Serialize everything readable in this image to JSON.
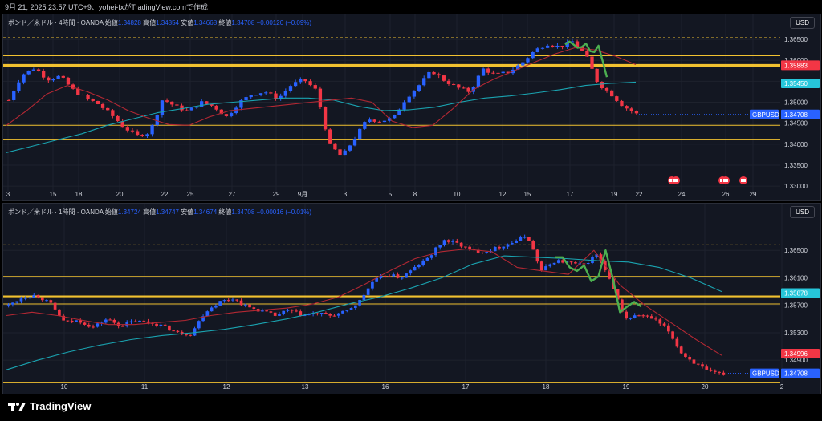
{
  "header": {
    "caption": "9月 21, 2025 23:57 UTC+9、yohei-fxがTradingView.comで作成"
  },
  "footer": {
    "brand": "TradingView"
  },
  "chart_data": [
    {
      "type": "candlestick",
      "symbol_label": "ポンド／米ドル · 4時間 · OANDA",
      "ohlc_labels": {
        "open": "始値",
        "high": "高値",
        "low": "安値",
        "close": "終値"
      },
      "ohlc": {
        "open": "1.34828",
        "high": "1.34854",
        "low": "1.34668",
        "close": "1.34708",
        "change": "−0.00120 (−0.09%)"
      },
      "currency": "USD",
      "ylim": [
        1.3285,
        1.3675
      ],
      "y_ticks": [
        "1.36500",
        "1.36000",
        "1.35500",
        "1.35000",
        "1.34500",
        "1.34000",
        "1.33500",
        "1.33000"
      ],
      "x_ticks": [
        "3",
        "15",
        "18",
        "20",
        "22",
        "25",
        "27",
        "29",
        "9月",
        "3",
        "5",
        "8",
        "10",
        "12",
        "15",
        "17",
        "19",
        "22",
        "24",
        "26",
        "29"
      ],
      "last_price": {
        "symbol": "GBPUSD",
        "value": "1.34708"
      },
      "price_labels": [
        {
          "value": "1.35883",
          "color": "#f23645"
        },
        {
          "value": "1.35450",
          "color": "#26c6da"
        }
      ],
      "levels": [
        {
          "value": 1.3654,
          "style": "dashed",
          "color": "#f2c230"
        },
        {
          "value": 1.3611,
          "style": "solid",
          "color": "#f2c230"
        },
        {
          "value": 1.3589,
          "style": "solid",
          "color": "#f2c230"
        },
        {
          "value": 1.3586,
          "style": "solid",
          "color": "#f2c230"
        },
        {
          "value": 1.3445,
          "style": "solid",
          "color": "#f2c230"
        },
        {
          "value": 1.3412,
          "style": "solid",
          "color": "#f2c230"
        }
      ],
      "price_path": [
        1.3505,
        1.3565,
        1.3582,
        1.3555,
        1.3562,
        1.353,
        1.351,
        1.3495,
        1.347,
        1.344,
        1.342,
        1.3428,
        1.3508,
        1.349,
        1.3478,
        1.35,
        1.349,
        1.3465,
        1.35,
        1.352,
        1.3525,
        1.3508,
        1.354,
        1.3555,
        1.3528,
        1.34,
        1.337,
        1.3415,
        1.346,
        1.3455,
        1.3462,
        1.351,
        1.354,
        1.3575,
        1.3552,
        1.3535,
        1.3525,
        1.358,
        1.3565,
        1.3572,
        1.3592,
        1.3622,
        1.364,
        1.3632,
        1.3645,
        1.3615,
        1.3545,
        1.352,
        1.349,
        1.3472
      ],
      "ma_red": [
        1.3445,
        1.348,
        1.352,
        1.354,
        1.3525,
        1.3505,
        1.348,
        1.3462,
        1.3447,
        1.3445,
        1.3465,
        1.348,
        1.3485,
        1.349,
        1.3495,
        1.35,
        1.3505,
        1.351,
        1.35,
        1.3455,
        1.344,
        1.3445,
        1.3485,
        1.353,
        1.3555,
        1.3575,
        1.3595,
        1.3615,
        1.363,
        1.3625,
        1.361,
        1.359
      ],
      "ma_teal": [
        1.338,
        1.3395,
        1.341,
        1.3425,
        1.3445,
        1.346,
        1.3475,
        1.3485,
        1.3495,
        1.35,
        1.3505,
        1.351,
        1.351,
        1.3505,
        1.349,
        1.348,
        1.3482,
        1.3488,
        1.35,
        1.351,
        1.3515,
        1.3522,
        1.353,
        1.354,
        1.3545,
        1.3548
      ],
      "green_curve": [
        1.3638,
        1.3645,
        1.3638,
        1.363,
        1.3632,
        1.364,
        1.3622,
        1.362,
        1.3635,
        1.3598,
        1.356
      ],
      "event_markers": [
        "24",
        "26"
      ]
    },
    {
      "type": "candlestick",
      "symbol_label": "ポンド／米ドル · 1時間 · OANDA",
      "ohlc_labels": {
        "open": "始値",
        "high": "高値",
        "low": "安値",
        "close": "終値"
      },
      "ohlc": {
        "open": "1.34724",
        "high": "1.34747",
        "low": "1.34674",
        "close": "1.34708",
        "change": "−0.00016 (−0.01%)"
      },
      "currency": "USD",
      "ylim": [
        1.3454,
        1.3697
      ],
      "y_ticks": [
        "1.36500",
        "1.36100",
        "1.35700",
        "1.35300",
        "1.34900"
      ],
      "x_ticks": [
        "10",
        "11",
        "12",
        "13",
        "16",
        "17",
        "18",
        "19",
        "20",
        "2"
      ],
      "last_price": {
        "symbol": "GBPUSD",
        "value": "1.34708"
      },
      "price_labels": [
        {
          "value": "1.35878",
          "color": "#26c6da"
        },
        {
          "value": "1.34996",
          "color": "#f23645"
        }
      ],
      "levels": [
        {
          "value": 1.3658,
          "style": "dashed",
          "color": "#f2c230"
        },
        {
          "value": 1.3612,
          "style": "solid",
          "color": "#f2c230"
        },
        {
          "value": 1.3583,
          "style": "solid",
          "color": "#f2c230"
        },
        {
          "value": 1.3572,
          "style": "solid",
          "color": "#f2c230"
        },
        {
          "value": 1.3458,
          "style": "solid",
          "color": "#f2c230"
        }
      ],
      "price_path": [
        1.357,
        1.3582,
        1.3585,
        1.3572,
        1.3545,
        1.3548,
        1.3538,
        1.355,
        1.354,
        1.3547,
        1.3545,
        1.354,
        1.353,
        1.3528,
        1.356,
        1.3575,
        1.358,
        1.3568,
        1.3562,
        1.3555,
        1.3563,
        1.3555,
        1.3558,
        1.3555,
        1.356,
        1.3575,
        1.3605,
        1.3615,
        1.361,
        1.3625,
        1.364,
        1.3665,
        1.366,
        1.365,
        1.3648,
        1.3655,
        1.3662,
        1.3672,
        1.362,
        1.3635,
        1.3632,
        1.3628,
        1.3645,
        1.36,
        1.355,
        1.3556,
        1.355,
        1.3535,
        1.35,
        1.3485,
        1.3472,
        1.347
      ],
      "ma_red": [
        1.3555,
        1.356,
        1.3555,
        1.3548,
        1.3542,
        1.3542,
        1.3545,
        1.3548,
        1.3555,
        1.356,
        1.3563,
        1.3566,
        1.3572,
        1.3582,
        1.36,
        1.362,
        1.3638,
        1.3648,
        1.3652,
        1.3648,
        1.3625,
        1.362,
        1.3615,
        1.365,
        1.36,
        1.357,
        1.3545,
        1.352,
        1.3497
      ],
      "ma_teal": [
        1.3476,
        1.349,
        1.3502,
        1.3512,
        1.352,
        1.3526,
        1.353,
        1.3535,
        1.3542,
        1.355,
        1.356,
        1.3572,
        1.3582,
        1.3595,
        1.361,
        1.363,
        1.3642,
        1.364,
        1.3638,
        1.3635,
        1.3633,
        1.3625,
        1.361,
        1.359
      ],
      "green_curve": [
        1.364,
        1.364,
        1.3625,
        1.362,
        1.3628,
        1.3605,
        1.3612,
        1.365,
        1.361,
        1.356,
        1.3568,
        1.3575,
        1.3568
      ]
    }
  ]
}
